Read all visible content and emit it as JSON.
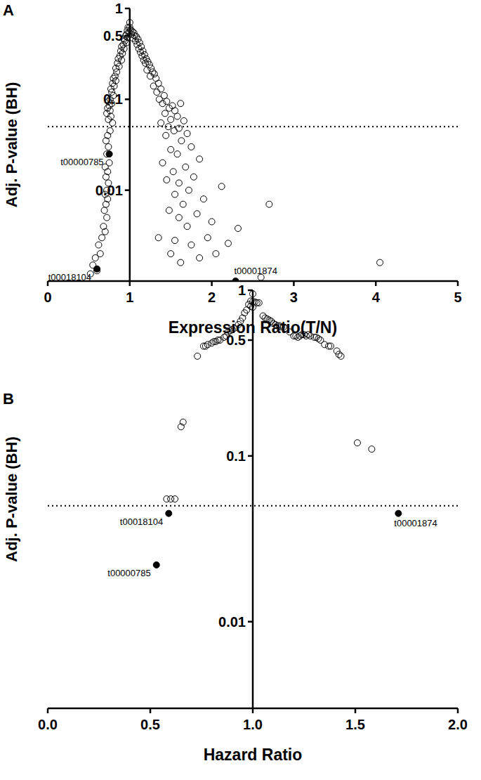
{
  "chart_data": [
    {
      "type": "scatter",
      "title": "A",
      "x_label": "Expression Ratio(T/N)",
      "y_label": "Adj. P-value (BH)",
      "log": "y",
      "xlim": [
        0,
        5
      ],
      "xticks": [
        0,
        1,
        2,
        3,
        4,
        5
      ],
      "ylim": [
        0.001,
        1
      ],
      "yticks": [
        0.01,
        0.1,
        0.5,
        1
      ],
      "y_axis_at": 1,
      "threshold": 0.05,
      "series": [
        {
          "marker": "open",
          "color": "#000000",
          "x": [
            0.98,
            0.97,
            0.99,
            0.96,
            0.95,
            0.97,
            0.93,
            0.94,
            0.96,
            0.92,
            0.9,
            0.93,
            0.89,
            0.91,
            0.88,
            0.86,
            0.9,
            0.85,
            0.87,
            0.83,
            0.84,
            0.82,
            0.8,
            0.83,
            0.79,
            0.81,
            0.77,
            0.78,
            0.8,
            0.76,
            0.74,
            0.78,
            0.75,
            0.73,
            0.76,
            0.72,
            0.77,
            0.74,
            0.79,
            0.76,
            0.73,
            0.71,
            0.74,
            0.72,
            0.75,
            0.7,
            0.73,
            0.71,
            0.74,
            0.72,
            0.7,
            0.73,
            0.71,
            0.69,
            0.72,
            0.68,
            0.7,
            0.66,
            0.62,
            0.64,
            0.58,
            0.55,
            0.6,
            0.52,
            1.0,
            1.0,
            1.01,
            1.03,
            1.05,
            1.02,
            1.06,
            1.08,
            1.04,
            1.1,
            1.07,
            1.12,
            1.09,
            1.14,
            1.11,
            1.16,
            1.13,
            1.18,
            1.15,
            1.2,
            1.17,
            1.22,
            1.19,
            1.24,
            1.26,
            1.21,
            1.28,
            1.3,
            1.25,
            1.32,
            1.35,
            1.29,
            1.38,
            1.33,
            1.42,
            1.36,
            1.45,
            1.4,
            1.52,
            1.62,
            1.48,
            1.55,
            1.43,
            1.58,
            1.5,
            1.66,
            1.38,
            1.47,
            1.6,
            1.54,
            1.7,
            1.44,
            1.63,
            1.75,
            1.5,
            1.58,
            1.85,
            1.4,
            1.68,
            1.53,
            1.78,
            1.45,
            1.6,
            2.12,
            1.72,
            1.55,
            1.9,
            1.65,
            2.7,
            1.48,
            1.82,
            1.6,
            2.0,
            1.7,
            2.32,
            1.35,
            1.95,
            1.55,
            2.2,
            1.75,
            1.5,
            2.05,
            1.62,
            1.85,
            4.05,
            2.6
          ],
          "values": [
            0.62,
            0.57,
            0.55,
            0.52,
            0.5,
            0.48,
            0.46,
            0.44,
            0.42,
            0.4,
            0.38,
            0.36,
            0.34,
            0.32,
            0.3,
            0.28,
            0.27,
            0.25,
            0.23,
            0.22,
            0.2,
            0.18,
            0.17,
            0.16,
            0.15,
            0.14,
            0.13,
            0.12,
            0.11,
            0.1,
            0.095,
            0.09,
            0.085,
            0.08,
            0.075,
            0.07,
            0.065,
            0.06,
            0.055,
            0.045,
            0.04,
            0.035,
            0.03,
            0.025,
            0.02,
            0.018,
            0.016,
            0.014,
            0.012,
            0.01,
            0.009,
            0.008,
            0.007,
            0.006,
            0.005,
            0.004,
            0.0035,
            0.003,
            0.0025,
            0.002,
            0.0018,
            0.0015,
            0.0013,
            0.0012,
            0.7,
            0.62,
            0.58,
            0.56,
            0.54,
            0.52,
            0.5,
            0.49,
            0.47,
            0.46,
            0.44,
            0.42,
            0.4,
            0.38,
            0.36,
            0.34,
            0.33,
            0.31,
            0.3,
            0.28,
            0.27,
            0.26,
            0.25,
            0.24,
            0.22,
            0.21,
            0.2,
            0.19,
            0.18,
            0.17,
            0.15,
            0.14,
            0.13,
            0.12,
            0.11,
            0.1,
            0.095,
            0.09,
            0.085,
            0.09,
            0.08,
            0.075,
            0.07,
            0.065,
            0.06,
            0.058,
            0.055,
            0.05,
            0.048,
            0.045,
            0.042,
            0.04,
            0.035,
            0.03,
            0.028,
            0.025,
            0.022,
            0.02,
            0.018,
            0.016,
            0.014,
            0.013,
            0.012,
            0.011,
            0.01,
            0.009,
            0.008,
            0.007,
            0.007,
            0.006,
            0.0055,
            0.005,
            0.0045,
            0.004,
            0.0038,
            0.003,
            0.003,
            0.0028,
            0.0026,
            0.0025,
            0.002,
            0.002,
            0.0016,
            0.0018,
            0.0016,
            0.0011
          ]
        },
        {
          "marker": "filled",
          "color": "#000000",
          "x": [
            0.75,
            0.6,
            2.29
          ],
          "values": [
            0.025,
            0.00136,
            0.001
          ],
          "point_labels": [
            "t00000785",
            "t00018104",
            "t00001874"
          ]
        }
      ]
    },
    {
      "type": "scatter",
      "title": "B",
      "x_label": "Hazard Ratio",
      "y_label": "Adj. P-value (BH)",
      "log": "y",
      "xlim": [
        0,
        2
      ],
      "xticks": [
        {
          "value": 0,
          "label": "0.0"
        },
        {
          "value": 0.5,
          "label": "0.5"
        },
        {
          "value": 1,
          "label": "1.0"
        },
        {
          "value": 1.5,
          "label": "1.5"
        },
        {
          "value": 2,
          "label": "2.0"
        }
      ],
      "ylim": [
        0.003,
        1
      ],
      "yticks": [
        0.01,
        0.1,
        0.5,
        1
      ],
      "y_axis_at": 1,
      "threshold": 0.05,
      "series": [
        {
          "marker": "open",
          "color": "#000000",
          "x": [
            1.0,
            0.99,
            1.0,
            1.01,
            1.02,
            1.03,
            0.98,
            0.99,
            1.0,
            0.97,
            0.96,
            0.95,
            0.94,
            0.93,
            0.91,
            0.9,
            0.89,
            0.88,
            0.87,
            0.86,
            0.84,
            0.83,
            0.82,
            0.81,
            0.8,
            0.78,
            0.77,
            0.76,
            0.73,
            0.66,
            0.65,
            0.58,
            0.6,
            0.62,
            1.05,
            1.06,
            1.07,
            1.08,
            1.09,
            1.1,
            1.11,
            1.12,
            1.13,
            1.14,
            1.15,
            1.16,
            1.18,
            1.2,
            1.21,
            1.22,
            1.23,
            1.24,
            1.25,
            1.26,
            1.27,
            1.28,
            1.3,
            1.31,
            1.32,
            1.33,
            1.35,
            1.37,
            1.38,
            1.41,
            1.42,
            1.43,
            1.51,
            1.58
          ],
          "values": [
            0.95,
            0.86,
            0.85,
            0.85,
            0.84,
            0.84,
            0.82,
            0.8,
            0.79,
            0.76,
            0.73,
            0.68,
            0.65,
            0.62,
            0.59,
            0.58,
            0.57,
            0.56,
            0.53,
            0.52,
            0.5,
            0.5,
            0.49,
            0.49,
            0.48,
            0.47,
            0.46,
            0.46,
            0.4,
            0.16,
            0.15,
            0.055,
            0.055,
            0.055,
            0.7,
            0.68,
            0.67,
            0.66,
            0.65,
            0.63,
            0.62,
            0.61,
            0.61,
            0.6,
            0.6,
            0.59,
            0.56,
            0.53,
            0.53,
            0.52,
            0.53,
            0.54,
            0.54,
            0.53,
            0.54,
            0.53,
            0.52,
            0.52,
            0.51,
            0.5,
            0.47,
            0.46,
            0.46,
            0.43,
            0.41,
            0.4,
            0.12,
            0.11
          ]
        },
        {
          "marker": "filled",
          "color": "#000000",
          "x": [
            0.59,
            0.53,
            1.71
          ],
          "values": [
            0.045,
            0.022,
            0.045
          ],
          "point_labels": [
            "t00018104",
            "t00000785",
            "t00001874"
          ]
        }
      ]
    }
  ]
}
